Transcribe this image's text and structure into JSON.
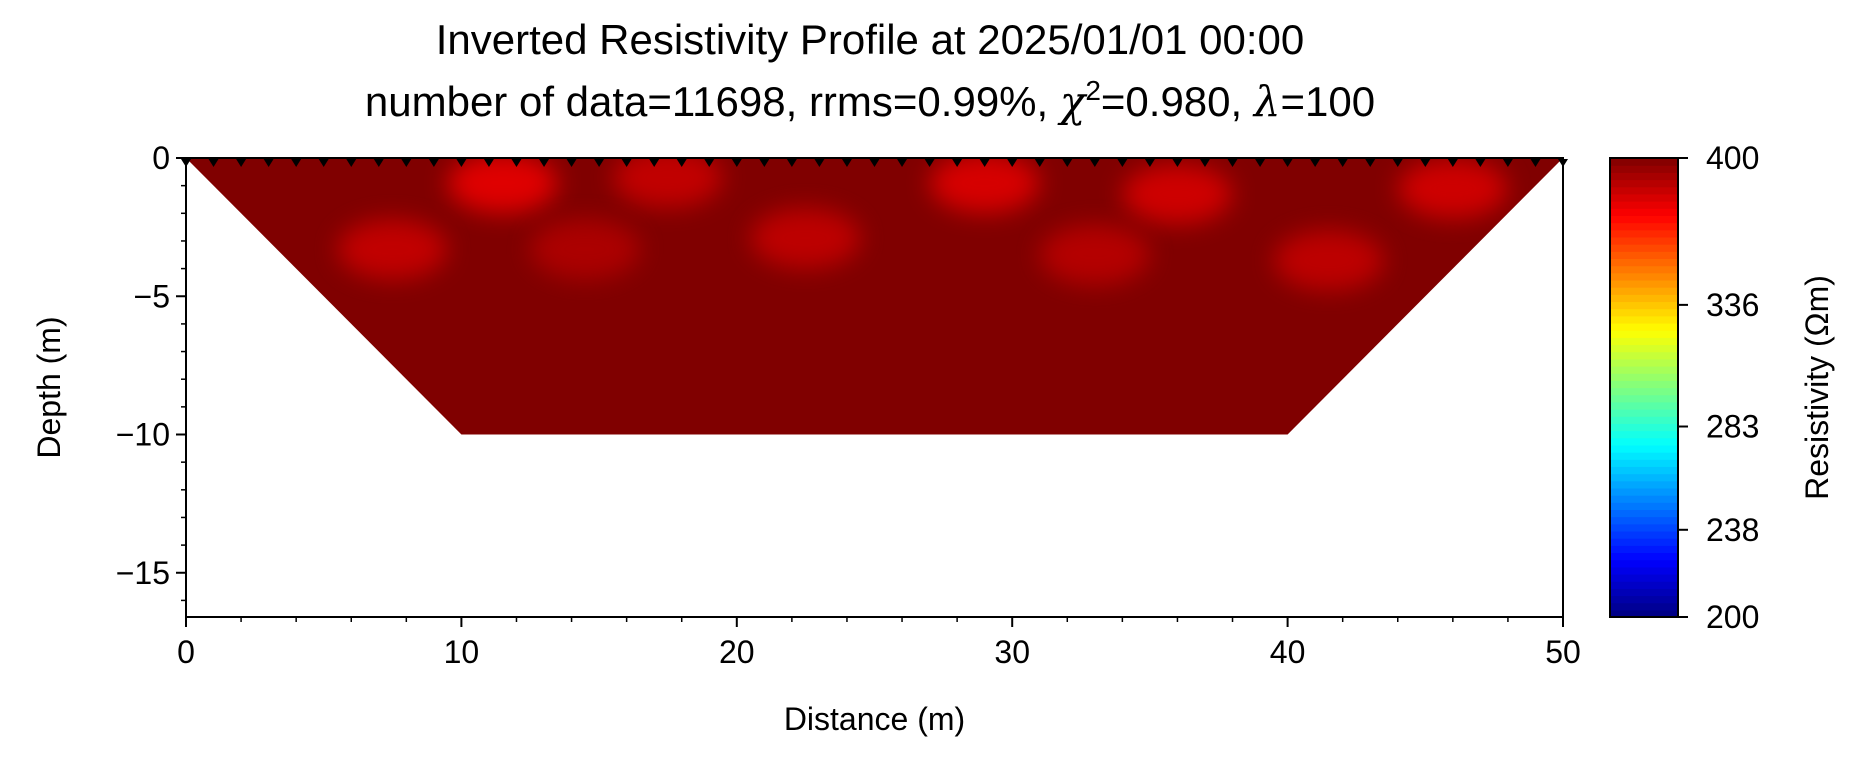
{
  "chart_data": {
    "type": "heatmap",
    "title": "Inverted Resistivity Profile at 2025/01/01 00:00",
    "subtitle": {
      "prefix": "number of data=11698, rrms=0.99%, ",
      "chi_symbol": "χ",
      "chi_exponent": "2",
      "chi_value": "=0.980, ",
      "lambda_symbol": "λ",
      "lambda_value": "=100"
    },
    "xlabel": "Distance (m)",
    "ylabel": "Depth (m)",
    "xlim": [
      0,
      50
    ],
    "ylim": [
      -16.6,
      0
    ],
    "xticks": [
      0,
      10,
      20,
      30,
      40,
      50
    ],
    "xtick_labels": [
      "0",
      "10",
      "20",
      "30",
      "40",
      "50"
    ],
    "yticks": [
      0,
      -5,
      -10,
      -15
    ],
    "ytick_labels": [
      "0",
      "−5",
      "−10",
      "−15"
    ],
    "model_outline": [
      [
        0,
        0
      ],
      [
        50,
        0
      ],
      [
        40,
        -10
      ],
      [
        10,
        -10
      ]
    ],
    "background_resistivity": 400,
    "anomalies": [
      {
        "x": 11.5,
        "depth": -0.9,
        "value": 378
      },
      {
        "x": 17.5,
        "depth": -0.7,
        "value": 385
      },
      {
        "x": 29,
        "depth": -0.9,
        "value": 380
      },
      {
        "x": 36,
        "depth": -1.3,
        "value": 382
      },
      {
        "x": 46,
        "depth": -1.1,
        "value": 382
      },
      {
        "x": 7.5,
        "depth": -3.3,
        "value": 385
      },
      {
        "x": 22.5,
        "depth": -2.9,
        "value": 386
      },
      {
        "x": 33,
        "depth": -3.5,
        "value": 388
      },
      {
        "x": 41.5,
        "depth": -3.7,
        "value": 386
      },
      {
        "x": 14.5,
        "depth": -3.3,
        "value": 390
      }
    ],
    "electrodes": {
      "start": 0,
      "end": 50,
      "spacing": 1
    },
    "colorbar": {
      "label": "Resistivity (Ωm)",
      "range": [
        200,
        400
      ],
      "ticks": [
        200,
        238,
        283,
        336,
        400
      ],
      "tick_labels": [
        "200",
        "238",
        "283",
        "336",
        "400"
      ],
      "colormap": "jet"
    }
  }
}
